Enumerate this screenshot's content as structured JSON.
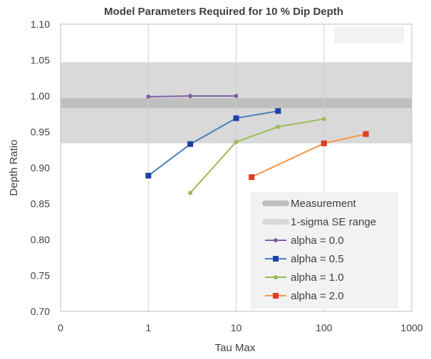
{
  "chart_data": {
    "type": "line",
    "title": "Model Parameters Required for 10 % Dip Depth",
    "xlabel": "Tau Max",
    "ylabel": "Depth Ratio",
    "x_scale": "log",
    "xlim": [
      0.1,
      1000
    ],
    "ylim": [
      0.7,
      1.1
    ],
    "x_ticks": [
      {
        "value": 0.1,
        "label": "0"
      },
      {
        "value": 1,
        "label": "1"
      },
      {
        "value": 10,
        "label": "10"
      },
      {
        "value": 100,
        "label": "100"
      },
      {
        "value": 1000,
        "label": "1000"
      }
    ],
    "y_ticks": [
      {
        "value": 0.7,
        "label": "0.70"
      },
      {
        "value": 0.75,
        "label": "0.75"
      },
      {
        "value": 0.8,
        "label": "0.80"
      },
      {
        "value": 0.85,
        "label": "0.85"
      },
      {
        "value": 0.9,
        "label": "0.90"
      },
      {
        "value": 0.95,
        "label": "0.95"
      },
      {
        "value": 1.0,
        "label": "1.00"
      },
      {
        "value": 1.05,
        "label": "1.05"
      },
      {
        "value": 1.1,
        "label": "1.10"
      }
    ],
    "grid": {
      "vertical": true,
      "horizontal": false
    },
    "legend_position": "bottom-right",
    "bands": [
      {
        "name": "Measurement",
        "y_range": [
          0.983,
          0.997
        ],
        "color": "#bfbfbf"
      },
      {
        "name": "1-sigma SE range",
        "y_range": [
          0.934,
          1.047
        ],
        "color": "#d9d9d9"
      }
    ],
    "series": [
      {
        "name": "alpha = 0.0",
        "color": "#7f5fa6",
        "marker": "circle",
        "points": [
          [
            1,
            0.999
          ],
          [
            3,
            1.0
          ],
          [
            10,
            1.0
          ]
        ]
      },
      {
        "name": "alpha = 0.5",
        "color": "#4a7ebb",
        "marker_color": "#1f3fa8",
        "marker": "square",
        "points": [
          [
            1,
            0.889
          ],
          [
            3,
            0.933
          ],
          [
            10,
            0.969
          ],
          [
            30,
            0.979
          ]
        ]
      },
      {
        "name": "alpha = 1.0",
        "color": "#9bbb59",
        "marker": "circle",
        "points": [
          [
            3,
            0.865
          ],
          [
            10,
            0.936
          ],
          [
            30,
            0.957
          ],
          [
            100,
            0.968
          ]
        ]
      },
      {
        "name": "alpha = 2.0",
        "color": "#f79646",
        "marker_color": "#e8401c",
        "marker": "square",
        "points": [
          [
            15,
            0.887
          ],
          [
            100,
            0.934
          ],
          [
            300,
            0.947
          ]
        ]
      }
    ]
  }
}
